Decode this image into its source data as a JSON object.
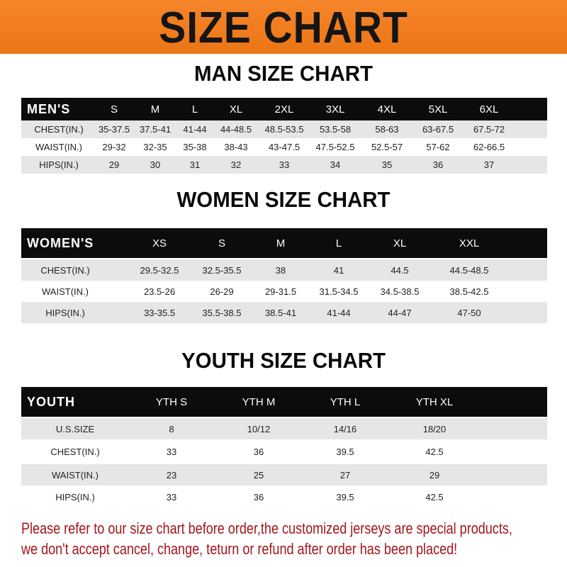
{
  "banner": {
    "title": "SIZE CHART",
    "color": "#f07e1f"
  },
  "men": {
    "title": "MAN SIZE CHART",
    "header": [
      "MEN'S",
      "S",
      "M",
      "L",
      "XL",
      "2XL",
      "3XL",
      "4XL",
      "5XL",
      "6XL"
    ],
    "rows": [
      [
        "CHEST(IN.)",
        "35-37.5",
        "37.5-41",
        "41-44",
        "44-48.5",
        "48.5-53.5",
        "53.5-58",
        "58-63",
        "63-67.5",
        "67.5-72"
      ],
      [
        "WAIST(IN.)",
        "29-32",
        "32-35",
        "35-38",
        "38-43",
        "43-47.5",
        "47.5-52.5",
        "52.5-57",
        "57-62",
        "62-66.5"
      ],
      [
        "HIPS(IN.)",
        "29",
        "30",
        "31",
        "32",
        "33",
        "34",
        "35",
        "36",
        "37"
      ]
    ]
  },
  "women": {
    "title": "WOMEN SIZE CHART",
    "header": [
      "WOMEN'S",
      "XS",
      "S",
      "M",
      "L",
      "XL",
      "XXL"
    ],
    "rows": [
      [
        "CHEST(IN.)",
        "29.5-32.5",
        "32.5-35.5",
        "38",
        "41",
        "44.5",
        "44.5-48.5"
      ],
      [
        "WAIST(IN.)",
        "23.5-26",
        "26-29",
        "29-31.5",
        "31.5-34.5",
        "34.5-38.5",
        "38.5-42.5"
      ],
      [
        "HIPS(IN.)",
        "33-35.5",
        "35.5-38.5",
        "38.5-41",
        "41-44",
        "44-47",
        "47-50"
      ]
    ]
  },
  "youth": {
    "title": "YOUTH SIZE CHART",
    "header": [
      "YOUTH",
      "YTH S",
      "YTH M",
      "YTH L",
      "YTH XL"
    ],
    "rows": [
      [
        "U.S.SIZE",
        "8",
        "10/12",
        "14/16",
        "18/20"
      ],
      [
        "CHEST(IN.)",
        "33",
        "36",
        "39.5",
        "42.5"
      ],
      [
        "WAIST(IN.)",
        "23",
        "25",
        "27",
        "29"
      ],
      [
        "HIPS(IN.)",
        "33",
        "36",
        "39.5",
        "42.5"
      ]
    ]
  },
  "notice": {
    "line1": "Please refer to our size chart before order,the customized jerseys are special products,",
    "line2": "we don't accept cancel, change, teturn or refund after order has been placed!",
    "color": "#a3161c"
  }
}
